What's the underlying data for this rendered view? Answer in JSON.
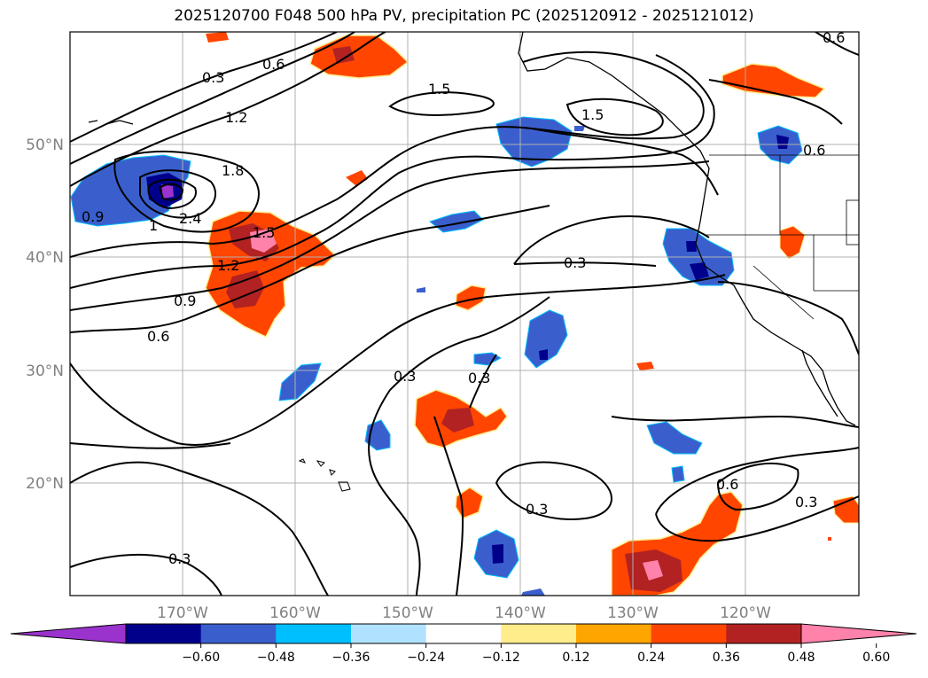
{
  "title": "2025120700 F048 500 hPa PV, precipitation PC (2025120912 - 2025121012)",
  "map": {
    "lon_range": [
      -180,
      -110
    ],
    "lat_range": [
      10,
      60
    ],
    "lat_labels": [
      "50°N",
      "40°N",
      "30°N",
      "20°N"
    ],
    "lon_labels": [
      "170°W",
      "160°W",
      "150°W",
      "140°W",
      "130°W",
      "120°W"
    ],
    "land_outline_color": "#000000",
    "gridline_color": "#b0b0b0"
  },
  "pv_contours": {
    "color": "#000000",
    "labels": [
      "0.3",
      "0.6",
      "1.2",
      "1.8",
      "2.4",
      "1.5",
      "1.2",
      "0.9",
      "0.6",
      "1",
      "0.9",
      "1.5",
      "1.5",
      "0.3",
      "0.3",
      "0.3",
      "0.3",
      "0.6",
      "0.3",
      "0.3",
      "0.6",
      "0.6"
    ]
  },
  "precip_anomaly_regions": [
    {
      "level": 0.36,
      "description": "positive"
    },
    {
      "level": -0.36,
      "description": "negative"
    }
  ],
  "colorbar": {
    "ticks": [
      "−0.60",
      "−0.48",
      "−0.36",
      "−0.24",
      "−0.12",
      "0.12",
      "0.24",
      "0.36",
      "0.48",
      "0.60"
    ],
    "colors": [
      "#9a32cd",
      "#00008b",
      "#3a5fcd",
      "#00bfff",
      "#b0e2ff",
      "#ffffff",
      "#ffec8b",
      "#ffa500",
      "#ff4500",
      "#b22222",
      "#ff82ab"
    ],
    "extend": "both"
  }
}
